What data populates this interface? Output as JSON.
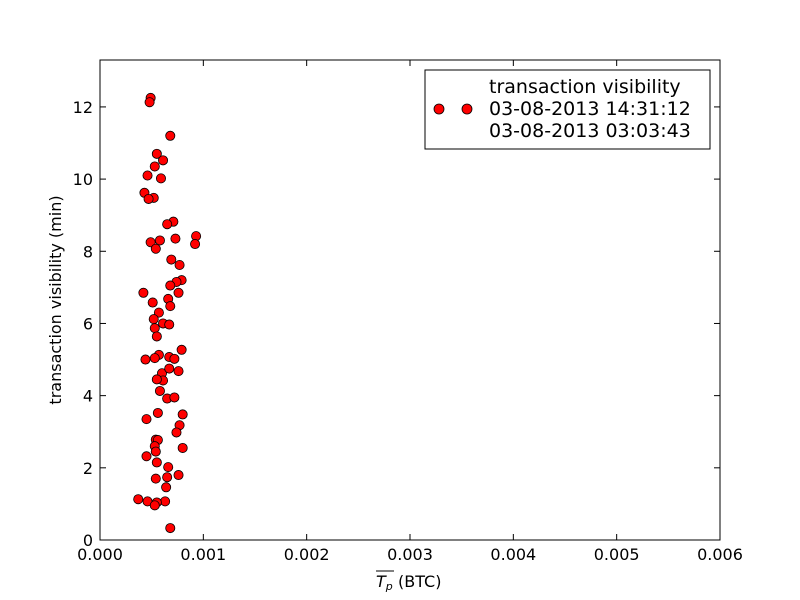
{
  "chart_data": {
    "type": "scatter",
    "xlabel_math": "T_p",
    "xlabel_unit": "(BTC)",
    "ylabel": "transaction visibility (min)",
    "xlim": [
      0.0,
      0.006
    ],
    "ylim": [
      0,
      13.3
    ],
    "xticks": [
      "0.000",
      "0.001",
      "0.002",
      "0.003",
      "0.004",
      "0.005",
      "0.006"
    ],
    "yticks": [
      "0",
      "2",
      "4",
      "6",
      "8",
      "10",
      "12"
    ],
    "grid": false,
    "marker_color": "#ff0000",
    "legend": {
      "placement": "top-right",
      "title": "transaction visibility",
      "line1": "03-08-2013 14:31:12",
      "line2": "03-08-2013 03:03:43"
    },
    "series": [
      {
        "x": [
          0.00049,
          0.00048,
          0.00068,
          0.00055,
          0.00061,
          0.00053,
          0.00046,
          0.00059,
          0.00043,
          0.00052,
          0.00047,
          0.00071,
          0.00065,
          0.00093,
          0.00073,
          0.00049,
          0.00058,
          0.00054,
          0.00092,
          0.00069,
          0.00077,
          0.00079,
          0.00074,
          0.00068,
          0.00042,
          0.00076,
          0.00066,
          0.00051,
          0.00068,
          0.00057,
          0.00052,
          0.00061,
          0.00067,
          0.00053,
          0.00055,
          0.00079,
          0.00057,
          0.00044,
          0.00053,
          0.00067,
          0.00072,
          0.0006,
          0.00076,
          0.00067,
          0.00061,
          0.00055,
          0.00058,
          0.00065,
          0.00072,
          0.00056,
          0.0008,
          0.00045,
          0.00077,
          0.00054,
          0.00074,
          0.00056,
          0.00053,
          0.00054,
          0.0008,
          0.00045,
          0.00055,
          0.00066,
          0.00076,
          0.00054,
          0.00065,
          0.00064,
          0.00037,
          0.00046,
          0.00063,
          0.00055,
          0.00053,
          0.00068
        ],
        "y": [
          12.25,
          12.13,
          11.2,
          10.7,
          10.52,
          10.35,
          10.1,
          10.02,
          9.62,
          9.48,
          9.45,
          8.82,
          8.75,
          8.42,
          8.35,
          8.25,
          8.3,
          8.07,
          8.2,
          7.77,
          7.62,
          7.2,
          7.15,
          7.05,
          6.85,
          6.85,
          6.68,
          6.58,
          6.48,
          6.3,
          6.12,
          6.0,
          5.97,
          5.87,
          5.64,
          5.27,
          5.13,
          5.0,
          5.04,
          5.07,
          5.02,
          4.62,
          4.68,
          4.75,
          4.42,
          4.45,
          4.13,
          3.92,
          3.95,
          3.52,
          3.48,
          3.35,
          3.18,
          2.78,
          2.98,
          2.77,
          2.6,
          2.45,
          2.55,
          2.32,
          2.15,
          2.02,
          1.8,
          1.7,
          1.74,
          1.46,
          1.13,
          1.07,
          1.07,
          1.04,
          0.96,
          0.33
        ]
      }
    ]
  }
}
